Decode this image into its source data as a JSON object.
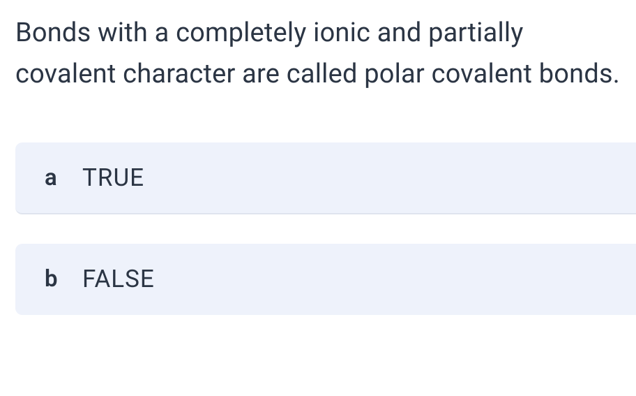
{
  "question": {
    "text": "Bonds with a completely ionic and partially covalent character are called polar covalent bonds.",
    "text_color": "#2b3544",
    "fontsize": 38,
    "line_height": 1.55,
    "background_color": "#ffffff"
  },
  "options": [
    {
      "letter": "a",
      "label": "TRUE"
    },
    {
      "letter": "b",
      "label": "FALSE"
    }
  ],
  "option_style": {
    "background_color": "#eef2fb",
    "border_bottom_color": "#dfe4ee",
    "border_radius": 10,
    "letter_fontsize": 33,
    "letter_weight": 600,
    "label_fontsize": 35,
    "text_color": "#2b3544",
    "label_letter_spacing": 1
  }
}
